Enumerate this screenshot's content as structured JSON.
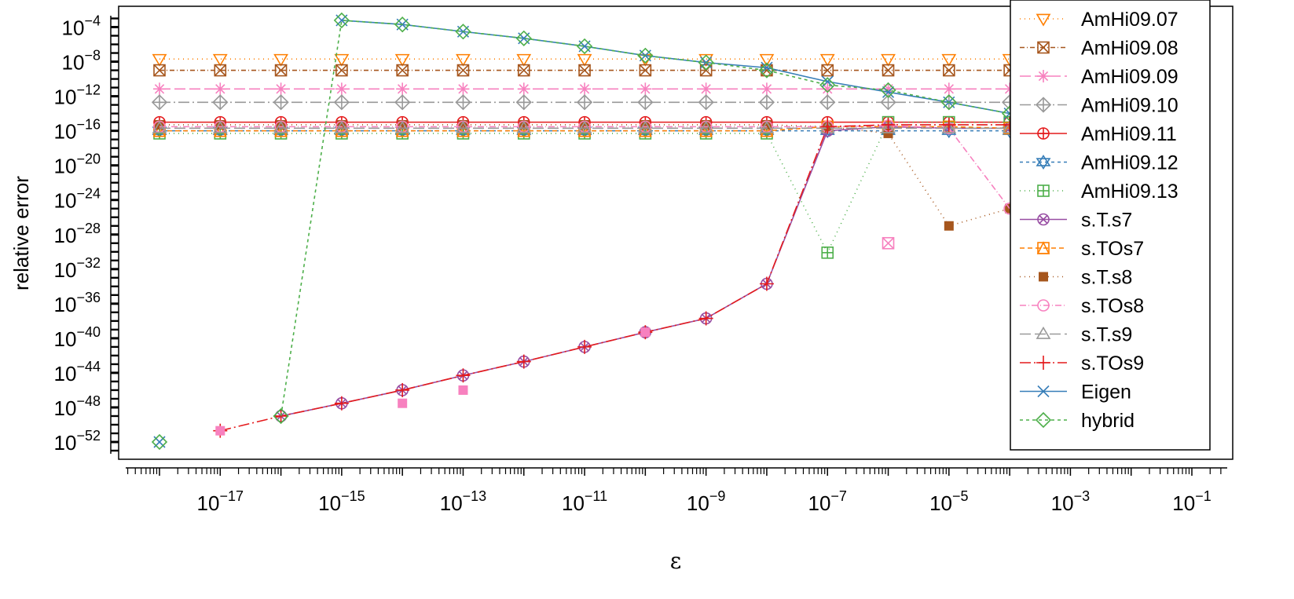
{
  "chart_data": {
    "type": "line",
    "title": "",
    "xlabel": "ε",
    "ylabel": "relative error",
    "xscale": "log",
    "yscale": "log",
    "xlim": [
      5e-19,
      0.2
    ],
    "ylim": [
      1e-54,
      0.01
    ],
    "x_ticks": [
      {
        "value": 1e-17,
        "base": "10",
        "exp": "−17"
      },
      {
        "value": 1e-15,
        "base": "10",
        "exp": "−15"
      },
      {
        "value": 1e-13,
        "base": "10",
        "exp": "−13"
      },
      {
        "value": 1e-11,
        "base": "10",
        "exp": "−11"
      },
      {
        "value": 1e-09,
        "base": "10",
        "exp": "−9"
      },
      {
        "value": 1e-07,
        "base": "10",
        "exp": "−7"
      },
      {
        "value": 1e-05,
        "base": "10",
        "exp": "−5"
      },
      {
        "value": 0.001,
        "base": "10",
        "exp": "−3"
      },
      {
        "value": 0.1,
        "base": "10",
        "exp": "−1"
      }
    ],
    "y_ticks": [
      {
        "value": 1e-52,
        "base": "10",
        "exp": "−52"
      },
      {
        "value": 1e-48,
        "base": "10",
        "exp": "−48"
      },
      {
        "value": 1e-44,
        "base": "10",
        "exp": "−44"
      },
      {
        "value": 1e-40,
        "base": "10",
        "exp": "−40"
      },
      {
        "value": 1e-36,
        "base": "10",
        "exp": "−36"
      },
      {
        "value": 1e-32,
        "base": "10",
        "exp": "−32"
      },
      {
        "value": 1e-28,
        "base": "10",
        "exp": "−28"
      },
      {
        "value": 1e-24,
        "base": "10",
        "exp": "−24"
      },
      {
        "value": 1e-20,
        "base": "10",
        "exp": "−20"
      },
      {
        "value": 1e-16,
        "base": "10",
        "exp": "−16"
      },
      {
        "value": 1e-12,
        "base": "10",
        "exp": "−12"
      },
      {
        "value": 1e-08,
        "base": "10",
        "exp": "−8"
      },
      {
        "value": 0.0001,
        "base": "10",
        "exp": "−4"
      }
    ],
    "legend_position": "top-right",
    "x": [
      1e-18,
      1e-17,
      1e-16,
      1e-15,
      1e-14,
      1e-13,
      1e-12,
      1e-11,
      1e-10,
      1e-09,
      1e-08,
      1e-07,
      1e-06,
      1e-05,
      0.0001,
      0.001,
      0.01,
      0.1
    ],
    "series": [
      {
        "name": "AmHi09.07",
        "color": "#ff7f00",
        "dash": "1,5",
        "marker": "tri-down",
        "values": [
          2e-08,
          2e-08,
          2e-08,
          2e-08,
          2e-08,
          2e-08,
          2e-08,
          2e-08,
          2e-08,
          2e-08,
          2e-08,
          2e-08,
          2e-08,
          2e-08,
          2e-08,
          2e-08,
          2e-08,
          2e-08
        ]
      },
      {
        "name": "AmHi09.08",
        "color": "#a6561d",
        "dash": "6,3,1,3",
        "marker": "box-x",
        "values": [
          1e-09,
          1e-09,
          1e-09,
          1e-09,
          1e-09,
          1e-09,
          1e-09,
          1e-09,
          1e-09,
          1e-09,
          1e-09,
          1e-09,
          1e-09,
          1e-09,
          1e-09,
          1e-09,
          1e-09,
          1e-09
        ]
      },
      {
        "name": "AmHi09.09",
        "color": "#f781bf",
        "dash": "14,5",
        "marker": "asterisk",
        "values": [
          7e-12,
          7e-12,
          7e-12,
          7e-12,
          7e-12,
          7e-12,
          7e-12,
          7e-12,
          7e-12,
          7e-12,
          7e-12,
          7e-12,
          7e-12,
          7e-12,
          7e-12,
          7e-12,
          7e-12,
          7e-12
        ]
      },
      {
        "name": "AmHi09.10",
        "color": "#999999",
        "dash": "14,4,2,4",
        "marker": "diamond-plus",
        "values": [
          2e-13,
          2e-13,
          2e-13,
          2e-13,
          2e-13,
          2e-13,
          2e-13,
          2e-13,
          2e-13,
          2e-13,
          2e-13,
          2e-13,
          2e-13,
          2e-13,
          2e-13,
          2e-13,
          2e-13,
          2e-13
        ]
      },
      {
        "name": "AmHi09.11",
        "color": "#e41a1c",
        "dash": "",
        "marker": "circle-plus",
        "values": [
          1e-15,
          1e-15,
          1e-15,
          1e-15,
          1e-15,
          1e-15,
          1e-15,
          1e-15,
          1e-15,
          1e-15,
          1e-15,
          1e-15,
          1e-15,
          1e-15,
          1e-15,
          1e-15,
          1e-15,
          1e-15
        ]
      },
      {
        "name": "AmHi09.12",
        "color": "#377eb8",
        "dash": "4,4",
        "marker": "star-of-david",
        "values": [
          1e-16,
          1e-16,
          1e-16,
          1e-16,
          1e-16,
          1e-16,
          1e-16,
          1e-16,
          1e-16,
          1e-16,
          1e-16,
          1e-16,
          1e-16,
          1e-16,
          1e-16,
          1e-16,
          1e-16,
          1e-16
        ]
      },
      {
        "name": "AmHi09.13",
        "color": "#4daf4a",
        "dash": "1,5",
        "marker": "box-plus",
        "values": [
          5e-17,
          5e-17,
          5e-17,
          5e-17,
          5e-17,
          5e-17,
          5e-17,
          5e-17,
          5e-17,
          5e-17,
          5e-17,
          8e-31,
          1e-15,
          1e-15,
          1e-15,
          1e-15,
          1e-15,
          1e-15
        ]
      },
      {
        "name": "s.T.s7",
        "color": "#984ea3",
        "dash": "",
        "marker": "circle-x",
        "values": [
          null,
          null,
          1e-49,
          3e-48,
          1e-46,
          5e-45,
          2e-43,
          1e-41,
          5e-40,
          2e-38,
          2e-34,
          1e-16,
          3e-16,
          2e-16,
          2e-16,
          2e-16,
          2e-16,
          2e-16
        ]
      },
      {
        "name": "s.TOs7",
        "color": "#ff7f00",
        "dash": "6,4",
        "marker": "tri-up-box",
        "values": [
          1e-16,
          1e-16,
          1e-16,
          1e-16,
          1e-16,
          1e-16,
          1e-16,
          1e-16,
          1e-16,
          1e-16,
          1e-16,
          3e-16,
          3e-16,
          3e-16,
          2e-16,
          2e-16,
          2e-16,
          2e-16
        ]
      },
      {
        "name": "s.T.s8",
        "color": "#a6561d",
        "dash": "1,5",
        "marker": "square-filled",
        "values": [
          5e-16,
          5e-16,
          5e-16,
          5e-16,
          5e-16,
          5e-16,
          5e-16,
          5e-16,
          5e-16,
          5e-16,
          5e-16,
          3e-16,
          5e-17,
          1e-27,
          1e-25,
          2e-16,
          3e-16,
          3e-16
        ]
      },
      {
        "name": "s.TOs8",
        "color": "#f781bf",
        "dash": "8,3,1,3",
        "marker": "circle",
        "values": [
          3e-16,
          3e-16,
          3e-16,
          3e-16,
          3e-16,
          3e-16,
          3e-16,
          3e-16,
          3e-16,
          3e-16,
          3e-16,
          3e-16,
          4e-16,
          2e-16,
          1e-25,
          1e-16,
          1e-16,
          1e-16
        ]
      },
      {
        "name": "s.T.s9",
        "color": "#999999",
        "dash": "14,5",
        "marker": "triangle",
        "values": [
          2e-16,
          2e-16,
          2e-16,
          2e-16,
          2e-16,
          2e-16,
          2e-16,
          2e-16,
          2e-16,
          2e-16,
          2e-16,
          2e-16,
          2e-16,
          2e-16,
          2e-16,
          2e-16,
          2e-16,
          2e-16
        ]
      },
      {
        "name": "s.TOs9",
        "color": "#e41a1c",
        "dash": "14,4,2,4",
        "marker": "plus",
        "values": [
          null,
          2e-51,
          1e-49,
          3e-48,
          1e-46,
          5e-45,
          2e-43,
          1e-41,
          5e-40,
          2e-38,
          2e-34,
          3e-16,
          5e-16,
          5e-16,
          5e-16,
          5e-16,
          5e-16,
          5e-16
        ]
      },
      {
        "name": "Eigen",
        "color": "#377eb8",
        "dash": "",
        "marker": "x",
        "values": [
          1e-52,
          null,
          null,
          0.0006,
          0.0002,
          3e-05,
          5e-06,
          6e-07,
          5e-08,
          8e-09,
          2e-09,
          5e-11,
          3e-12,
          2e-13,
          1e-14,
          2e-15,
          3e-16,
          4e-16
        ]
      },
      {
        "name": "hybrid",
        "color": "#4daf4a",
        "dash": "4,4",
        "marker": "diamond",
        "values": [
          1e-52,
          null,
          1e-49,
          0.0006,
          0.0002,
          3e-05,
          5e-06,
          6e-07,
          5e-08,
          8e-09,
          1e-09,
          2e-11,
          5e-12,
          2e-13,
          1e-14,
          2e-15,
          3e-16,
          4e-16
        ]
      }
    ],
    "extra_points": [
      {
        "series": "s.TOs8",
        "x": 1e-06,
        "value": 1e-29,
        "marker": "box-x",
        "color": "#f781bf"
      },
      {
        "series": "s.TOs8",
        "x": 1e-17,
        "value": 2e-51,
        "marker": "square-filled",
        "color": "#f781bf"
      },
      {
        "series": "s.TOs8",
        "x": 1e-14,
        "value": 3e-48,
        "marker": "square-filled",
        "color": "#f781bf"
      },
      {
        "series": "s.TOs8",
        "x": 1e-13,
        "value": 1e-46,
        "marker": "square-filled",
        "color": "#f781bf"
      },
      {
        "series": "s.TOs8",
        "x": 1e-10,
        "value": 5e-40,
        "marker": "square-filled",
        "color": "#f781bf"
      }
    ]
  }
}
